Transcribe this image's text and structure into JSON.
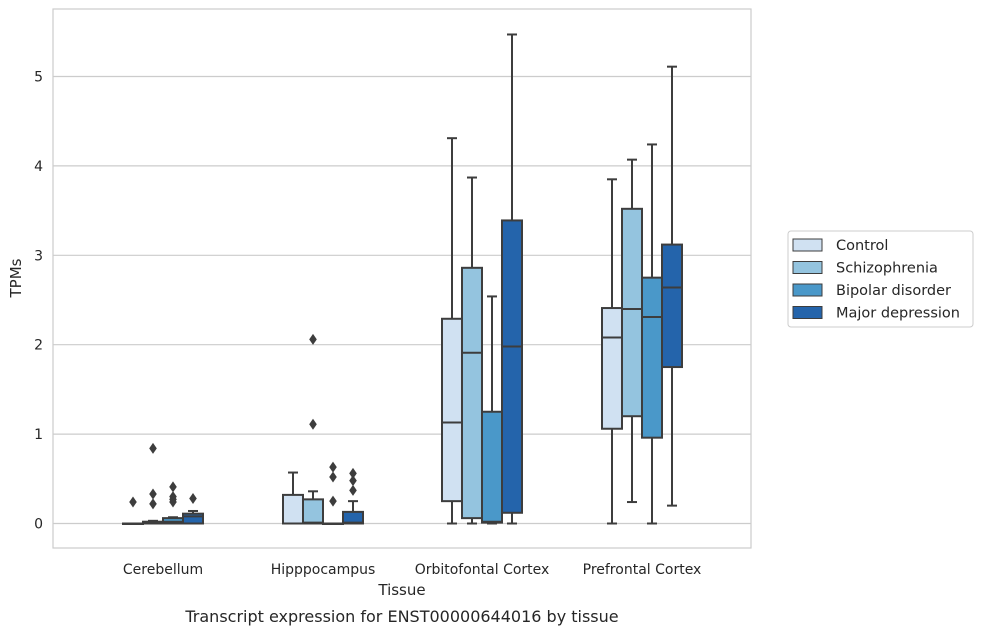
{
  "caption": "Transcript expression for ENST00000644016 by tissue",
  "chart_data": {
    "type": "box",
    "title": "",
    "xlabel": "Tissue",
    "ylabel": "TPMs",
    "ylim": [
      -0.27,
      5.73
    ],
    "yticks": [
      "0",
      "1",
      "2",
      "3",
      "4",
      "5"
    ],
    "grid": "horizontal",
    "legend_position": "right",
    "categories": [
      "Cerebellum",
      "Hipppocampus",
      "Orbitofontal Cortex",
      "Prefrontal Cortex"
    ],
    "series": [
      {
        "name": "Control",
        "color": "#d0e1f2",
        "boxes": [
          {
            "whisker_low": 0,
            "q1": 0,
            "median": 0,
            "q3": 0,
            "whisker_high": 0,
            "outliers": [
              0.24
            ]
          },
          {
            "whisker_low": 0,
            "q1": 0,
            "median": 0,
            "q3": 0.32,
            "whisker_high": 0.57,
            "outliers": []
          },
          {
            "whisker_low": 0,
            "q1": 0.25,
            "median": 1.13,
            "q3": 2.29,
            "whisker_high": 4.31,
            "outliers": []
          },
          {
            "whisker_low": 0,
            "q1": 1.06,
            "median": 2.08,
            "q3": 2.41,
            "whisker_high": 3.85,
            "outliers": []
          }
        ]
      },
      {
        "name": "Schizophrenia",
        "color": "#94c4df",
        "boxes": [
          {
            "whisker_low": 0,
            "q1": 0,
            "median": 0.01,
            "q3": 0.02,
            "whisker_high": 0.03,
            "outliers": [
              0.84,
              0.33,
              0.22
            ]
          },
          {
            "whisker_low": 0,
            "q1": 0,
            "median": 0.01,
            "q3": 0.27,
            "whisker_high": 0.36,
            "outliers": [
              2.06,
              1.11
            ]
          },
          {
            "whisker_low": 0,
            "q1": 0.06,
            "median": 1.91,
            "q3": 2.86,
            "whisker_high": 3.87,
            "outliers": []
          },
          {
            "whisker_low": 0.24,
            "q1": 1.2,
            "median": 2.4,
            "q3": 3.52,
            "whisker_high": 4.07,
            "outliers": []
          }
        ]
      },
      {
        "name": "Bipolar disorder",
        "color": "#4a98c9",
        "boxes": [
          {
            "whisker_low": 0,
            "q1": 0,
            "median": 0.02,
            "q3": 0.06,
            "whisker_high": 0.07,
            "outliers": [
              0.41,
              0.3,
              0.27,
              0.24
            ]
          },
          {
            "whisker_low": 0,
            "q1": 0,
            "median": 0,
            "q3": 0,
            "whisker_high": 0,
            "outliers": [
              0.63,
              0.52,
              0.25
            ]
          },
          {
            "whisker_low": 0,
            "q1": 0.01,
            "median": 0.02,
            "q3": 1.25,
            "whisker_high": 2.54,
            "outliers": []
          },
          {
            "whisker_low": 0,
            "q1": 0.96,
            "median": 2.31,
            "q3": 2.75,
            "whisker_high": 4.24,
            "outliers": []
          }
        ]
      },
      {
        "name": "Major depression",
        "color": "#2464ab",
        "boxes": [
          {
            "whisker_low": 0,
            "q1": 0,
            "median": 0.08,
            "q3": 0.11,
            "whisker_high": 0.14,
            "outliers": [
              0.28
            ]
          },
          {
            "whisker_low": 0,
            "q1": 0,
            "median": 0.01,
            "q3": 0.13,
            "whisker_high": 0.25,
            "outliers": [
              0.56,
              0.48,
              0.37
            ]
          },
          {
            "whisker_low": 0,
            "q1": 0.12,
            "median": 1.98,
            "q3": 3.39,
            "whisker_high": 5.47,
            "outliers": []
          },
          {
            "whisker_low": 0.2,
            "q1": 1.75,
            "median": 2.64,
            "q3": 3.12,
            "whisker_high": 5.11,
            "outliers": []
          }
        ]
      }
    ]
  }
}
